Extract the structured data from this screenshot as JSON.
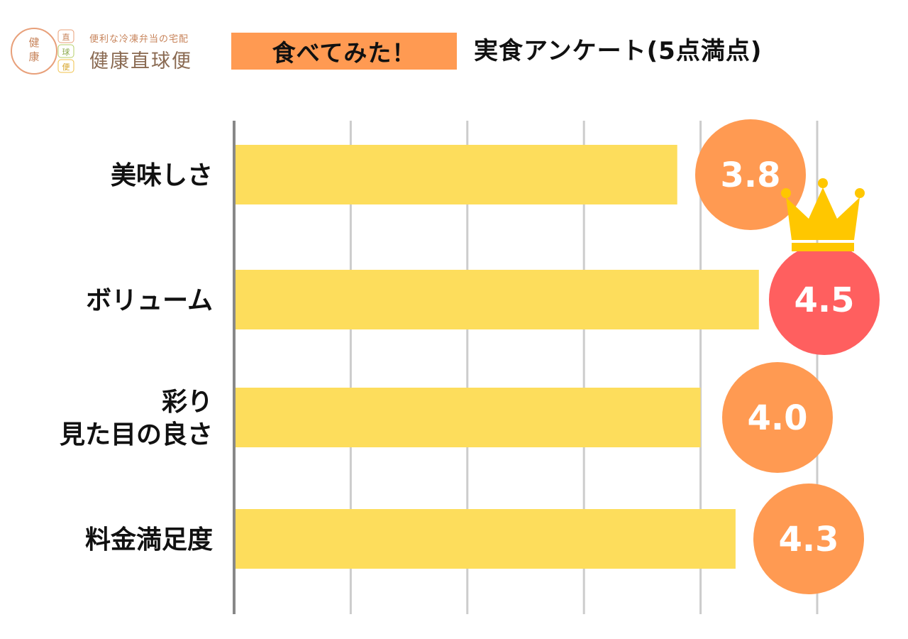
{
  "header": {
    "logo": {
      "mark_chars": [
        "健",
        "康",
        "直",
        "球",
        "便"
      ],
      "tagline": "便利な冷凍弁当の宅配",
      "name": "健康直球便"
    },
    "badge": "食べてみた！",
    "title": "実食アンケート(5点満点)"
  },
  "colors": {
    "bar": "#fddd5c",
    "circle": "#ff9a52",
    "circle_top": "#ff5f5f",
    "crown": "#ffc700",
    "grid": "#cccccc",
    "axis": "#888888",
    "badge": "#ff9a52"
  },
  "chart_data": {
    "type": "bar",
    "orientation": "horizontal",
    "title": "実食アンケート(5点満点)",
    "categories": [
      [
        "美味しさ"
      ],
      [
        "ボリューム"
      ],
      [
        "彩り",
        "見た目の良さ"
      ],
      [
        "料金満足度"
      ]
    ],
    "values": [
      3.8,
      4.5,
      4.0,
      4.3
    ],
    "value_labels": [
      "3.8",
      "4.5",
      "4.0",
      "4.3"
    ],
    "highlight_index": 1,
    "highlight_icon": "crown-icon",
    "xlim": [
      0,
      5
    ],
    "grid": true,
    "legend": "none"
  }
}
